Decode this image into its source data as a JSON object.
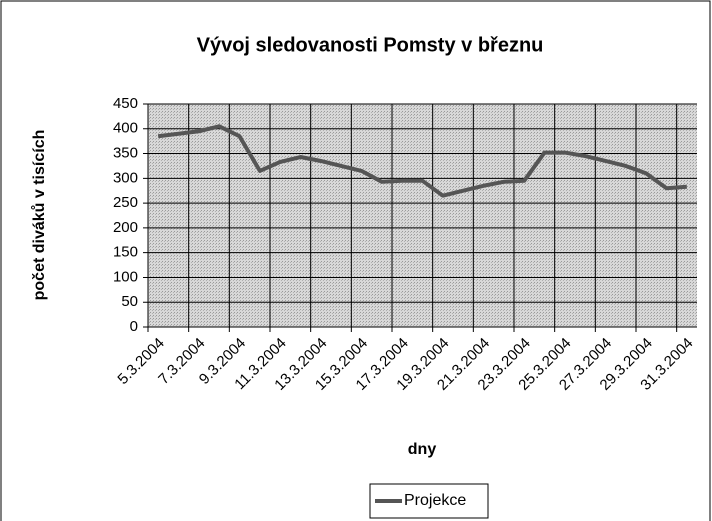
{
  "chart_data": {
    "type": "line",
    "title": "Vývoj sledovanosti Pomsty v březnu",
    "x_label": "dny",
    "y_label": "počet diváků v tisících",
    "categories": [
      "5.3.2004",
      null,
      "7.3.2004",
      null,
      "9.3.2004",
      null,
      "11.3.2004",
      null,
      "13.3.2004",
      null,
      "15.3.2004",
      null,
      "17.3.2004",
      null,
      "19.3.2004",
      null,
      "21.3.2004",
      null,
      "23.3.2004",
      null,
      "25.3.2004",
      null,
      "27.3.2004",
      null,
      "29.3.2004",
      null,
      "31.3.2004"
    ],
    "series": [
      {
        "name": "Projekce",
        "color": "#555555",
        "values": [
          385,
          390,
          395,
          405,
          385,
          315,
          333,
          343,
          335,
          325,
          315,
          293,
          295,
          295,
          265,
          275,
          285,
          293,
          295,
          352,
          352,
          345,
          335,
          325,
          310,
          280,
          283
        ]
      }
    ],
    "ylim": [
      0,
      450
    ],
    "yticks": [
      0,
      50,
      100,
      150,
      200,
      250,
      300,
      350,
      400,
      450
    ],
    "grid": true,
    "legend": "bottom"
  }
}
